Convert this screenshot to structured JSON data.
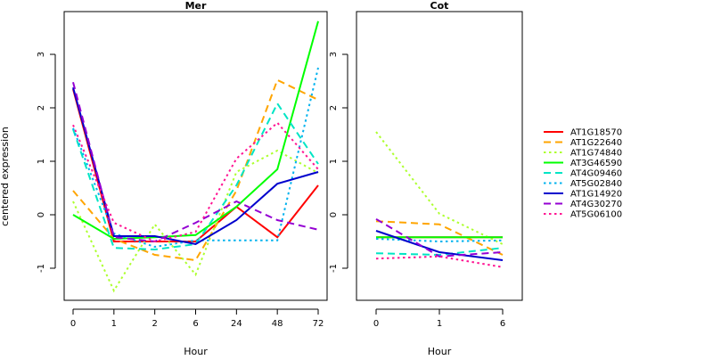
{
  "chart_data": {
    "type": "line",
    "ylabel": "centered expression",
    "grid": false,
    "legend_placement": "right",
    "yticks": [
      -1,
      0,
      1,
      2,
      3
    ],
    "series_styles": [
      {
        "name": "AT1G18570",
        "color": "#ff0000",
        "dash": "solid"
      },
      {
        "name": "AT1G22640",
        "color": "#ffa500",
        "dash": "dashed"
      },
      {
        "name": "AT1G74840",
        "color": "#adff2f",
        "dash": "dotted"
      },
      {
        "name": "AT3G46590",
        "color": "#00ff00",
        "dash": "solid"
      },
      {
        "name": "AT4G09460",
        "color": "#00e5c5",
        "dash": "dashed"
      },
      {
        "name": "AT5G02840",
        "color": "#00b2ee",
        "dash": "dotted"
      },
      {
        "name": "AT1G14920",
        "color": "#0000cd",
        "dash": "solid"
      },
      {
        "name": "AT4G30270",
        "color": "#9400d3",
        "dash": "dashed"
      },
      {
        "name": "AT5G06100",
        "color": "#ff1493",
        "dash": "dotted"
      }
    ],
    "panels": [
      {
        "title": "Mer",
        "xlabel": "Hour",
        "categories": [
          "0",
          "1",
          "2",
          "6",
          "24",
          "48",
          "72"
        ],
        "ylim": [
          -1.6,
          3.8
        ],
        "series": [
          {
            "name": "AT1G18570",
            "values": [
              2.35,
              -0.5,
              -0.5,
              -0.5,
              0.15,
              -0.42,
              0.55
            ]
          },
          {
            "name": "AT1G22640",
            "values": [
              0.45,
              -0.45,
              -0.75,
              -0.85,
              0.45,
              2.52,
              2.15
            ]
          },
          {
            "name": "AT1G74840",
            "values": [
              0.25,
              -1.42,
              -0.18,
              -1.12,
              0.8,
              1.2,
              0.78
            ]
          },
          {
            "name": "AT3G46590",
            "values": [
              0.0,
              -0.45,
              -0.42,
              -0.38,
              0.15,
              0.85,
              3.62
            ]
          },
          {
            "name": "AT4G09460",
            "values": [
              1.6,
              -0.62,
              -0.65,
              -0.55,
              0.55,
              2.08,
              0.95
            ]
          },
          {
            "name": "AT5G02840",
            "values": [
              1.62,
              -0.35,
              -0.6,
              -0.48,
              -0.48,
              -0.48,
              2.75
            ]
          },
          {
            "name": "AT1G14920",
            "values": [
              2.38,
              -0.4,
              -0.4,
              -0.55,
              -0.1,
              0.58,
              0.8
            ]
          },
          {
            "name": "AT4G30270",
            "values": [
              2.48,
              -0.42,
              -0.5,
              -0.15,
              0.25,
              -0.1,
              -0.28
            ]
          },
          {
            "name": "AT5G06100",
            "values": [
              1.68,
              -0.15,
              -0.5,
              -0.32,
              1.05,
              1.72,
              0.85
            ]
          }
        ]
      },
      {
        "title": "Cot",
        "xlabel": "Hour",
        "categories": [
          "0",
          "1",
          "6"
        ],
        "ylim": [
          -1.6,
          3.8
        ],
        "series": [
          {
            "name": "AT1G18570",
            "values": [
              -0.42,
              -0.42,
              -0.42
            ]
          },
          {
            "name": "AT1G22640",
            "values": [
              -0.12,
              -0.18,
              -0.75
            ]
          },
          {
            "name": "AT1G74840",
            "values": [
              1.55,
              0.02,
              -0.55
            ]
          },
          {
            "name": "AT3G46590",
            "values": [
              -0.42,
              -0.42,
              -0.42
            ]
          },
          {
            "name": "AT4G09460",
            "values": [
              -0.72,
              -0.75,
              -0.62
            ]
          },
          {
            "name": "AT5G02840",
            "values": [
              -0.45,
              -0.5,
              -0.48
            ]
          },
          {
            "name": "AT1G14920",
            "values": [
              -0.3,
              -0.7,
              -0.85
            ]
          },
          {
            "name": "AT4G30270",
            "values": [
              -0.08,
              -0.78,
              -0.7
            ]
          },
          {
            "name": "AT5G06100",
            "values": [
              -0.82,
              -0.78,
              -0.98
            ]
          }
        ]
      }
    ]
  }
}
